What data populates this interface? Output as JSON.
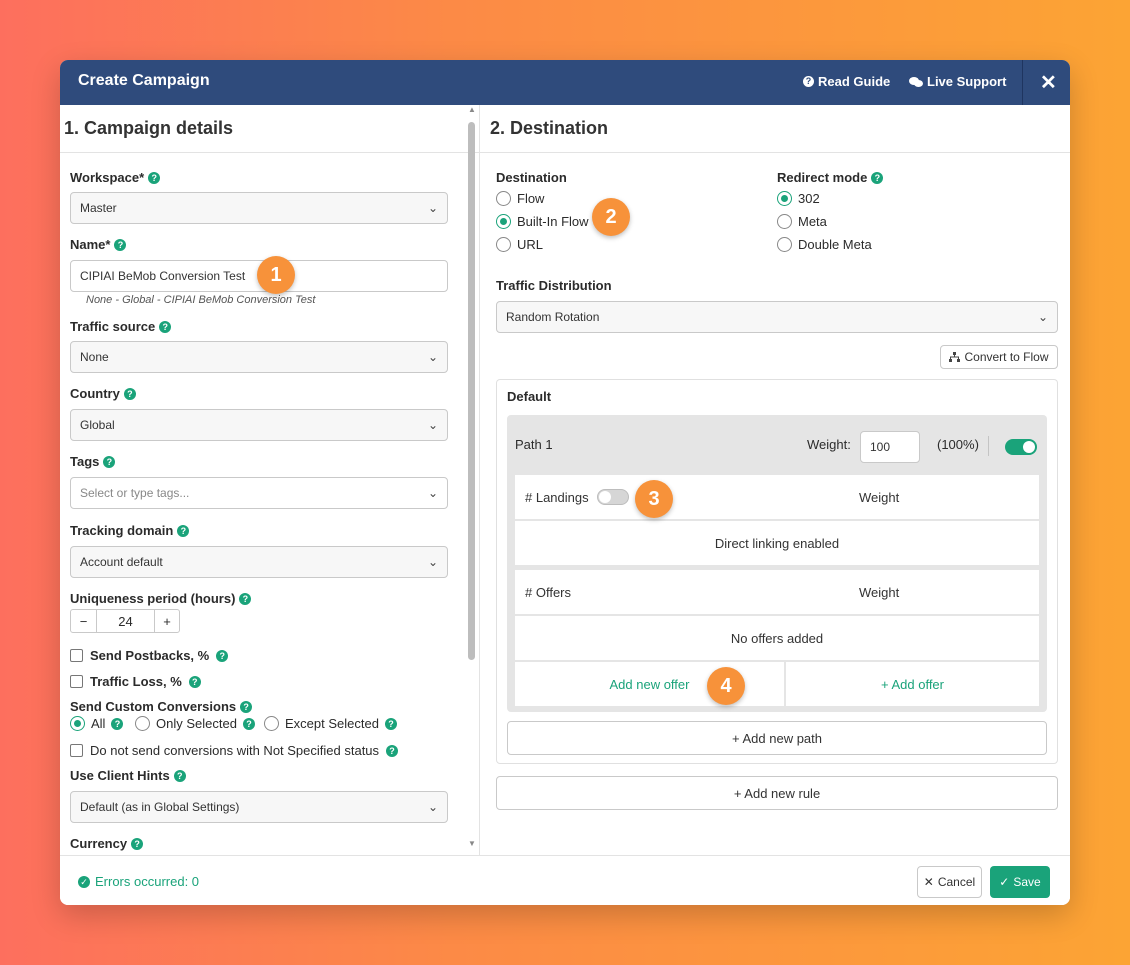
{
  "header": {
    "title": "Create Campaign",
    "read_guide": "Read Guide",
    "live_support": "Live Support",
    "close": "✕"
  },
  "left": {
    "section_title": "1. Campaign details",
    "workspace": {
      "label": "Workspace*",
      "value": "Master"
    },
    "name": {
      "label": "Name*",
      "value": "CIPIAI BeMob Conversion Test",
      "hint": "None - Global - CIPIAI BeMob Conversion Test"
    },
    "traffic_source": {
      "label": "Traffic source",
      "value": "None"
    },
    "country": {
      "label": "Country",
      "value": "Global"
    },
    "tags": {
      "label": "Tags",
      "placeholder": "Select or type tags..."
    },
    "tracking_domain": {
      "label": "Tracking domain",
      "value": "Account default"
    },
    "uniqueness": {
      "label": "Uniqueness period (hours)",
      "value": "24",
      "minus": "−",
      "plus": "+"
    },
    "send_postbacks": "Send Postbacks, %",
    "traffic_loss": "Traffic Loss, %",
    "custom_conversions": {
      "label": "Send Custom Conversions",
      "options": [
        "All",
        "Only Selected",
        "Except Selected"
      ],
      "selected": "All"
    },
    "not_specified": "Do not send conversions with Not Specified status",
    "client_hints": {
      "label": "Use Client Hints",
      "value": "Default (as in Global Settings)"
    },
    "currency": {
      "label": "Currency"
    }
  },
  "right": {
    "section_title": "2. Destination",
    "destination": {
      "label": "Destination",
      "options": [
        "Flow",
        "Built-In Flow",
        "URL"
      ],
      "selected": "Built-In Flow"
    },
    "redirect": {
      "label": "Redirect mode",
      "options": [
        "302",
        "Meta",
        "Double Meta"
      ],
      "selected": "302"
    },
    "traffic_distribution": {
      "label": "Traffic Distribution",
      "value": "Random Rotation"
    },
    "convert_to_flow": "Convert to Flow",
    "default_label": "Default",
    "path": {
      "name": "Path 1",
      "weight_label": "Weight:",
      "weight_value": "100",
      "percent": "(100%)",
      "enabled": true
    },
    "landings": {
      "header": "# Landings",
      "weight": "Weight",
      "empty": "Direct linking enabled",
      "enabled": false
    },
    "offers": {
      "header": "# Offers",
      "weight": "Weight",
      "empty": "No offers added",
      "add_new": "Add new offer",
      "add": "+ Add offer"
    },
    "add_path": "+ Add new path",
    "add_rule": "+ Add new rule"
  },
  "badges": [
    "1",
    "2",
    "3",
    "4"
  ],
  "footer": {
    "errors": "Errors occurred: 0",
    "cancel": "Cancel",
    "save": "Save"
  },
  "colors": {
    "header": "#2f4b7c",
    "accent": "#1aa37a",
    "badge": "#f7923a"
  }
}
